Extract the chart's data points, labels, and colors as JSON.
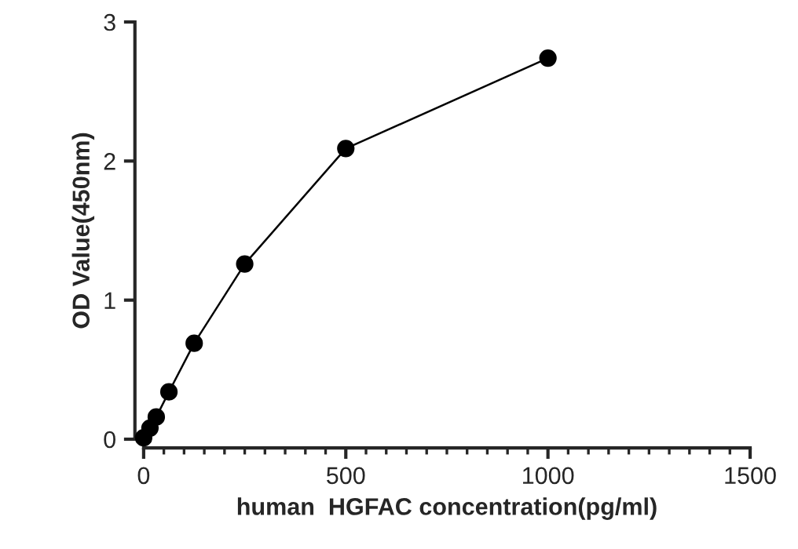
{
  "chart_data": {
    "type": "line",
    "xlabel": "human  HGFAC concentration(pg/ml)",
    "ylabel": "OD Value(450nm)",
    "x": [
      0,
      15.6,
      31.25,
      62.5,
      125,
      250,
      500,
      1000
    ],
    "series": [
      {
        "color": "#000000",
        "values": [
          0.01,
          0.08,
          0.16,
          0.34,
          0.69,
          1.26,
          2.09,
          2.74
        ]
      }
    ],
    "xlim": [
      0,
      1500
    ],
    "xticks": [
      0,
      500,
      1000,
      1500
    ],
    "ylim": [
      0,
      3
    ],
    "yticks": [
      0,
      1,
      2,
      3
    ],
    "marker": "circle",
    "line_style": "solid",
    "grid": false,
    "legend": false
  }
}
